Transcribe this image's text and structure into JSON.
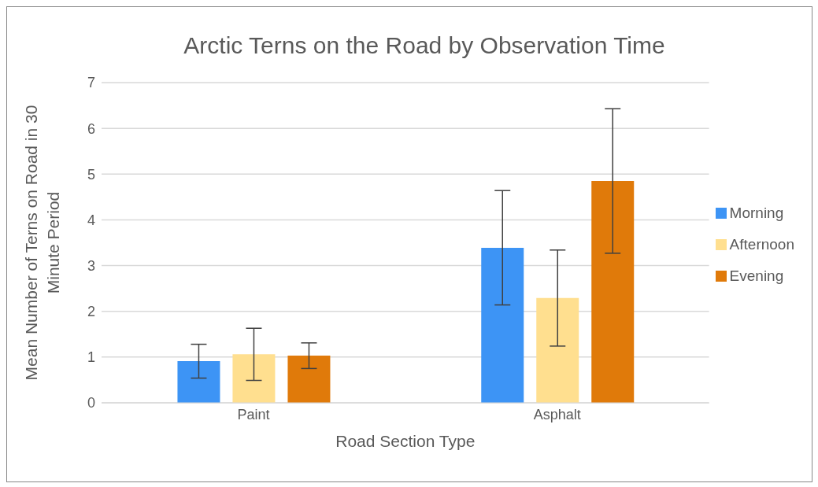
{
  "chart_data": {
    "type": "bar",
    "title": "Arctic Terns on the Road by Observation Time",
    "xlabel": "Road Section Type",
    "ylabel": "Mean Number of Terns on Road in 30 Minute Period",
    "categories": [
      "Paint",
      "Asphalt"
    ],
    "series": [
      {
        "name": "Morning",
        "color": "#3d94f5",
        "values": [
          0.91,
          3.39
        ],
        "errors": [
          0.37,
          1.25
        ]
      },
      {
        "name": "Afternoon",
        "color": "#ffdf8f",
        "values": [
          1.06,
          2.29
        ],
        "errors": [
          0.57,
          1.05
        ]
      },
      {
        "name": "Evening",
        "color": "#e07a0a",
        "values": [
          1.03,
          4.85
        ],
        "errors": [
          0.28,
          1.58
        ]
      }
    ],
    "ylim": [
      0,
      7
    ],
    "yticks": [
      0,
      1,
      2,
      3,
      4,
      5,
      6,
      7
    ],
    "grid": "y",
    "legend": "right"
  }
}
